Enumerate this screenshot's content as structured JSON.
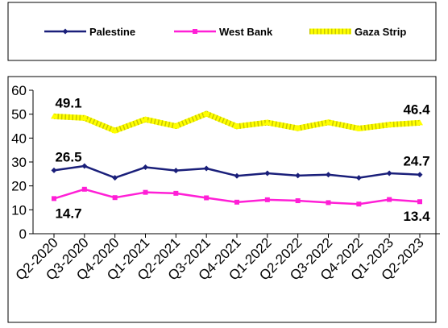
{
  "chart_data": {
    "type": "line",
    "categories": [
      "Q2-2020",
      "Q3-2020",
      "Q4-2020",
      "Q1-2021",
      "Q2-2021",
      "Q3-2021",
      "Q4-2021",
      "Q1-2022",
      "Q2-2022",
      "Q3-2022",
      "Q4-2022",
      "Q1-2023",
      "Q2-2023"
    ],
    "series": [
      {
        "name": "Palestine",
        "color": "#1a1f7a",
        "marker": "diamond",
        "values": [
          26.5,
          28.3,
          23.4,
          27.8,
          26.4,
          27.3,
          24.2,
          25.3,
          24.3,
          24.7,
          23.4,
          25.3,
          24.7
        ]
      },
      {
        "name": "West Bank",
        "color": "#ff1fd6",
        "marker": "square",
        "values": [
          14.7,
          18.6,
          15.1,
          17.3,
          16.9,
          15.0,
          13.2,
          14.2,
          13.8,
          13.0,
          12.4,
          14.3,
          13.4
        ]
      },
      {
        "name": "Gaza Strip",
        "color": "#ffff00",
        "marker": "triangle",
        "values": [
          49.1,
          48.4,
          43.1,
          47.8,
          45.0,
          50.2,
          44.9,
          46.5,
          44.1,
          46.6,
          44.0,
          45.6,
          46.4
        ]
      }
    ],
    "ylim": [
      0,
      60
    ],
    "yticks": [
      "0",
      "10",
      "20",
      "30",
      "40",
      "50",
      "60"
    ],
    "grid": false,
    "legend_placement": "top",
    "annotations": [
      {
        "text": "49.1",
        "series": "Gaza Strip",
        "index": 0
      },
      {
        "text": "46.4",
        "series": "Gaza Strip",
        "index": 12
      },
      {
        "text": "26.5",
        "series": "Palestine",
        "index": 0
      },
      {
        "text": "24.7",
        "series": "Palestine",
        "index": 12
      },
      {
        "text": "14.7",
        "series": "West Bank",
        "index": 0
      },
      {
        "text": "13.4",
        "series": "West Bank",
        "index": 12
      }
    ]
  }
}
